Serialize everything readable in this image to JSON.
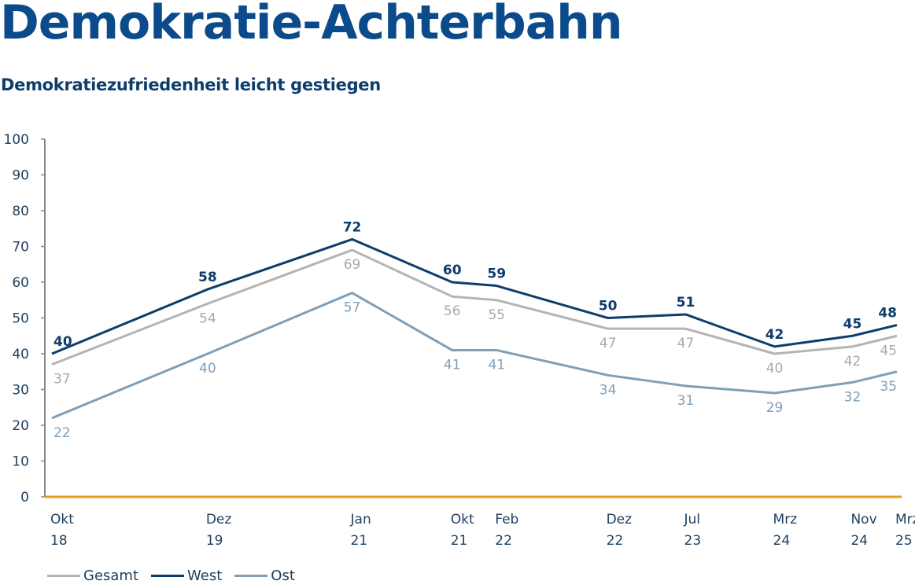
{
  "header": {
    "title": "Demokratie-Achterbahn",
    "subtitle": "Demokratiezufriedenheit leicht gestiegen"
  },
  "chart_data": {
    "type": "line",
    "title": "Demokratie-Achterbahn",
    "subtitle": "Demokratiezufriedenheit leicht gestiegen",
    "xlabel": "",
    "ylabel": "",
    "ylim": [
      0,
      100
    ],
    "yticks": [
      0,
      10,
      20,
      30,
      40,
      50,
      60,
      70,
      80,
      90,
      100
    ],
    "grid": false,
    "legend_position": "bottom-left",
    "categories": [
      {
        "month": "Okt",
        "year": "18",
        "t": 0
      },
      {
        "month": "Dez",
        "year": "19",
        "t": 14
      },
      {
        "month": "Jan",
        "year": "21",
        "t": 27
      },
      {
        "month": "Okt",
        "year": "21",
        "t": 36
      },
      {
        "month": "Feb",
        "year": "22",
        "t": 40
      },
      {
        "month": "Dez",
        "year": "22",
        "t": 50
      },
      {
        "month": "Jul",
        "year": "23",
        "t": 57
      },
      {
        "month": "Mrz",
        "year": "24",
        "t": 65
      },
      {
        "month": "Nov",
        "year": "24",
        "t": 72
      },
      {
        "month": "Mrz",
        "year": "25",
        "t": 76
      }
    ],
    "series": [
      {
        "name": "Gesamt",
        "color": "#b4b4b4",
        "label_color": "#aaaaaa",
        "label_weight": "normal",
        "label_position": "below",
        "values": [
          37,
          54,
          69,
          56,
          55,
          47,
          47,
          40,
          42,
          45
        ]
      },
      {
        "name": "West",
        "color": "#0d3d6b",
        "label_color": "#0d3d6b",
        "label_weight": "bold",
        "label_position": "above",
        "values": [
          40,
          58,
          72,
          60,
          59,
          50,
          51,
          42,
          45,
          48
        ]
      },
      {
        "name": "Ost",
        "color": "#7f9fb8",
        "label_color": "#7f9fb8",
        "label_weight": "normal",
        "label_position": "below",
        "values": [
          22,
          40,
          57,
          41,
          41,
          34,
          31,
          29,
          32,
          35
        ]
      }
    ],
    "zero_line_color": "#e59a24",
    "axis_color": "#888888",
    "tick_label_color": "#1f3e5c"
  }
}
